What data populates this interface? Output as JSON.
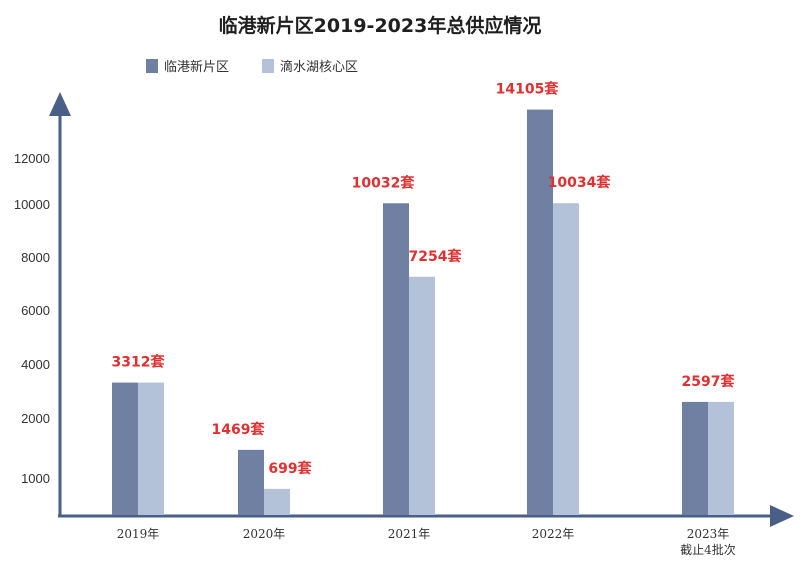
{
  "chart_data": {
    "type": "bar",
    "title": "临港新片区2019-2023年总供应情况",
    "legend_position": "top-left",
    "grid": false,
    "categories": [
      [
        "2019年"
      ],
      [
        "2020年"
      ],
      [
        "2021年"
      ],
      [
        "2022年"
      ],
      [
        "2023年",
        "截止4批次"
      ]
    ],
    "series": [
      {
        "name": "临港新片区",
        "values": [
          3312,
          1469,
          10032,
          14105,
          2597
        ],
        "labels": [
          "3312套",
          "1469套",
          "10032套",
          "14105套",
          "2597套"
        ]
      },
      {
        "name": "滴水湖核心区",
        "values": [
          3312,
          699,
          7254,
          10034,
          2597
        ],
        "labels": [
          "",
          "699套",
          "7254套",
          "10034套",
          ""
        ]
      }
    ],
    "yticks": [
      1000,
      2000,
      4000,
      6000,
      8000,
      10000,
      12000
    ],
    "yticks_labels": [
      "1000",
      "2000",
      "4000",
      "6000",
      "8000",
      "10000",
      "12000"
    ],
    "colors": {
      "series1": "#6f80a3",
      "series2": "#b3c2d9",
      "axis": "#4a5f87",
      "label": "#e03030"
    }
  }
}
